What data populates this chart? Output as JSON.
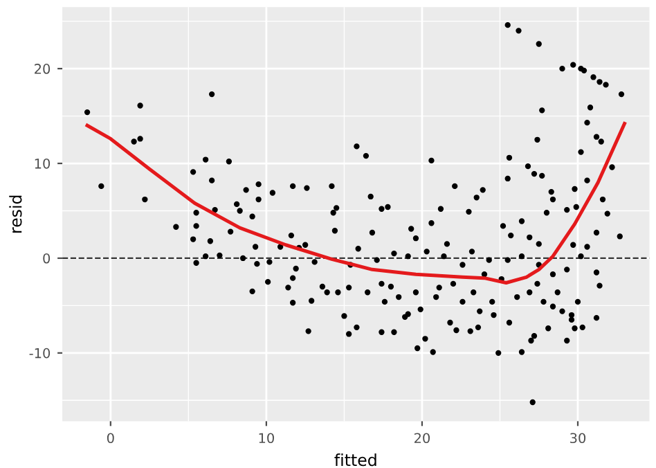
{
  "chart_data": {
    "type": "scatter",
    "xlabel": "fitted",
    "ylabel": "resid",
    "xlim": [
      -3.1,
      34.6
    ],
    "ylim": [
      -17.2,
      26.5
    ],
    "xticks": [
      0,
      10,
      20,
      30
    ],
    "yticks": [
      -10,
      0,
      10,
      20
    ],
    "grid": true,
    "marker": "circle",
    "ref_lines": [
      {
        "axis": "y",
        "value": 0,
        "label": null,
        "color": "#333333",
        "line_style": "dashed"
      }
    ],
    "series": [
      {
        "color": "#000000",
        "x": [
          -1.5,
          -0.6,
          1.9,
          1.5,
          1.9,
          2.2,
          4.2,
          5.3,
          5.3,
          5.5,
          5.5,
          5.5,
          6.1,
          6.1,
          6.4,
          6.5,
          6.5,
          6.7,
          7.0,
          7.6,
          7.7,
          8.1,
          8.3,
          8.5,
          8.7,
          9.1,
          9.1,
          9.3,
          9.4,
          9.5,
          9.5,
          10.1,
          10.2,
          10.4,
          10.9,
          11.4,
          11.6,
          11.7,
          11.7,
          11.7,
          11.9,
          12.1,
          12.5,
          12.6,
          12.7,
          12.9,
          13.1,
          13.6,
          13.9,
          14.2,
          14.3,
          14.5,
          14.4,
          25.5,
          26.2,
          27.5,
          29.0,
          29.7,
          30.2,
          30.4,
          31.0,
          31.4,
          31.8,
          32.8,
          27.7,
          30.8,
          27.4,
          30.6,
          31.2,
          31.5,
          30.2,
          15.8,
          16.4,
          20.6,
          25.6,
          25.5,
          26.8,
          27.2,
          32.2,
          30.6,
          29.8,
          16.7,
          22.1,
          23.5,
          23.9,
          23.0,
          21.2,
          17.4,
          17.8,
          28.3,
          28.4,
          31.6,
          28.0,
          29.3,
          29.9,
          31.9,
          31.2,
          32.7,
          31.2,
          31.4,
          31.2,
          27.7,
          25.2,
          25.7,
          26.9,
          27.5,
          26.4,
          19.3,
          19.6,
          20.6,
          21.6,
          16.8,
          15.0,
          15.3,
          15.8,
          17.4,
          18.2,
          19.7,
          20.2,
          20.7,
          21.8,
          22.2,
          23.1,
          23.6,
          24.9,
          26.4,
          27.1,
          27.0,
          27.2,
          28.1,
          29.3,
          29.8,
          30.3,
          18.9,
          19.1,
          19.9,
          18.0,
          16.5,
          15.3,
          14.6,
          17.4,
          22.0,
          23.3,
          24.6,
          25.6,
          26.1,
          26.9,
          27.8,
          28.4,
          29.0,
          29.6,
          30.0,
          28.7,
          27.4,
          25.1,
          24.0,
          22.6,
          21.4,
          20.3,
          19.1,
          18.2,
          17.1,
          15.9,
          15.4,
          23.2,
          24.3,
          25.5,
          26.4,
          27.5,
          28.4,
          29.3,
          30.2,
          30.6,
          29.7,
          29.6,
          21.1,
          20.9,
          19.6,
          18.5,
          17.6,
          22.6,
          23.7,
          24.5
        ],
        "values": [
          15.4,
          7.6,
          16.1,
          12.3,
          12.6,
          6.2,
          3.3,
          9.1,
          2.0,
          4.8,
          3.4,
          -0.5,
          10.4,
          0.2,
          1.8,
          17.3,
          8.2,
          5.1,
          0.3,
          10.2,
          2.8,
          5.7,
          5.0,
          0,
          7.2,
          4.4,
          -3.5,
          1.2,
          -0.6,
          7.8,
          6.2,
          -2.5,
          -0.4,
          6.9,
          1.2,
          -3.1,
          2.4,
          7.6,
          -4.7,
          -2.1,
          -1.1,
          1.1,
          1.4,
          7.4,
          -7.7,
          -4.5,
          -0.4,
          -3.0,
          -3.6,
          7.6,
          4.8,
          5.3,
          2.9,
          24.6,
          24.0,
          22.6,
          20.0,
          20.4,
          20.0,
          19.8,
          19.1,
          18.6,
          18.3,
          17.3,
          15.6,
          15.9,
          12.5,
          14.3,
          12.8,
          12.3,
          11.2,
          11.8,
          10.8,
          10.3,
          10.6,
          8.4,
          9.7,
          8.9,
          9.6,
          8.2,
          7.3,
          6.5,
          7.6,
          6.4,
          7.2,
          4.9,
          5.2,
          5.2,
          5.4,
          7.0,
          6.2,
          6.2,
          4.8,
          5.1,
          5.4,
          4.7,
          2.7,
          2.3,
          -1.5,
          -2.9,
          -6.3,
          8.7,
          3.4,
          2.4,
          2.2,
          1.5,
          3.9,
          3.1,
          2.1,
          3.7,
          1.5,
          2.7,
          -6.1,
          -8.0,
          -7.3,
          -7.8,
          -7.8,
          -9.5,
          -8.5,
          -9.9,
          -6.8,
          -7.6,
          -7.7,
          -7.3,
          -10.0,
          -9.9,
          -15.2,
          -8.7,
          -8.2,
          -7.4,
          -8.7,
          -7.4,
          -7.3,
          -6.2,
          -5.9,
          -5.4,
          -3.0,
          -3.6,
          -3.1,
          -3.6,
          -2.7,
          -2.7,
          -3.6,
          -6.0,
          -6.8,
          -4.1,
          -3.6,
          -4.6,
          -5.1,
          -5.6,
          -6.0,
          -4.6,
          -3.6,
          -2.7,
          -2.2,
          -1.7,
          -0.7,
          0.2,
          0.7,
          0.2,
          0.5,
          -0.2,
          1.0,
          -0.7,
          0.7,
          -0.2,
          -0.2,
          0.2,
          -0.7,
          -1.7,
          -1.2,
          0.2,
          1.2,
          1.4,
          -6.5,
          -3.1,
          -4.1,
          -3.6,
          -4.1,
          -4.6,
          -4.6,
          -5.6,
          -4.6
        ]
      },
      {
        "type": "line",
        "color": "#e41a1c",
        "marker": "none",
        "line_style": "solid",
        "x": [
          -1.5,
          0,
          2.5,
          5.4,
          8.3,
          11.25,
          14.2,
          16.8,
          19.6,
          22.6,
          24.0,
          25.4,
          26.7,
          27.5,
          28.4,
          29.8,
          31.3,
          33.0
        ],
        "values": [
          14.0,
          12.6,
          9.4,
          5.8,
          3.2,
          1.4,
          -0.1,
          -1.2,
          -1.7,
          -2.0,
          -2.1,
          -2.6,
          -2.0,
          -1.2,
          0.2,
          3.6,
          8.0,
          14.2
        ]
      }
    ]
  }
}
